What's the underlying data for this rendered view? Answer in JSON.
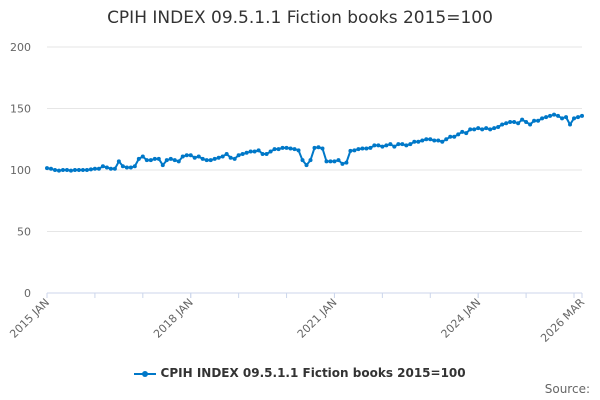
{
  "chart_data": {
    "type": "line",
    "title": "CPIH INDEX 09.5.1.1 Fiction books 2015=100",
    "xlabel": "",
    "ylabel": "",
    "ylim": [
      0,
      200
    ],
    "yticks": [
      0,
      50,
      100,
      150,
      200
    ],
    "start": "2015 JAN",
    "x_tick_labels": [
      {
        "label": "2015 JAN",
        "month_index": 0
      },
      {
        "label": "2018 JAN",
        "month_index": 36
      },
      {
        "label": "2021 JAN",
        "month_index": 72
      },
      {
        "label": "2024 JAN",
        "month_index": 108
      },
      {
        "label": "2026 MAR",
        "month_index": 134
      }
    ],
    "series": [
      {
        "name": "CPIH INDEX 09.5.1.1 Fiction books 2015=100",
        "color": "#0078c8",
        "values": [
          101.5,
          101,
          100,
          99.5,
          100,
          100,
          99.5,
          100,
          100,
          100,
          100,
          100.5,
          101,
          101,
          103,
          102,
          101,
          101,
          107,
          103,
          102,
          102,
          103,
          109,
          111,
          108,
          108,
          109,
          109,
          104,
          108,
          109,
          108,
          107,
          111,
          112,
          112,
          110,
          111,
          109,
          108,
          108,
          109,
          110,
          111,
          113,
          110,
          109,
          112,
          113,
          114,
          115,
          115,
          116,
          113,
          113,
          115,
          117,
          117,
          118,
          118,
          117.5,
          117,
          116,
          108,
          104,
          108,
          118,
          118.5,
          117.5,
          107,
          107,
          107,
          108,
          105,
          106,
          115.5,
          116,
          117,
          117.5,
          117.5,
          118,
          120,
          120,
          119,
          120,
          121,
          119,
          121,
          121,
          120,
          121,
          123,
          123,
          124,
          125,
          125,
          124,
          124,
          123,
          125,
          127,
          127,
          129,
          131,
          130,
          133,
          133,
          134,
          133,
          134,
          133,
          134,
          135,
          137,
          138,
          139,
          139,
          138,
          141,
          139,
          137,
          140,
          140,
          142,
          143,
          144,
          145,
          144,
          142,
          143,
          137,
          142,
          143,
          144
        ]
      }
    ],
    "legend_position": "bottom",
    "grid": true
  },
  "source_label": "Source:"
}
